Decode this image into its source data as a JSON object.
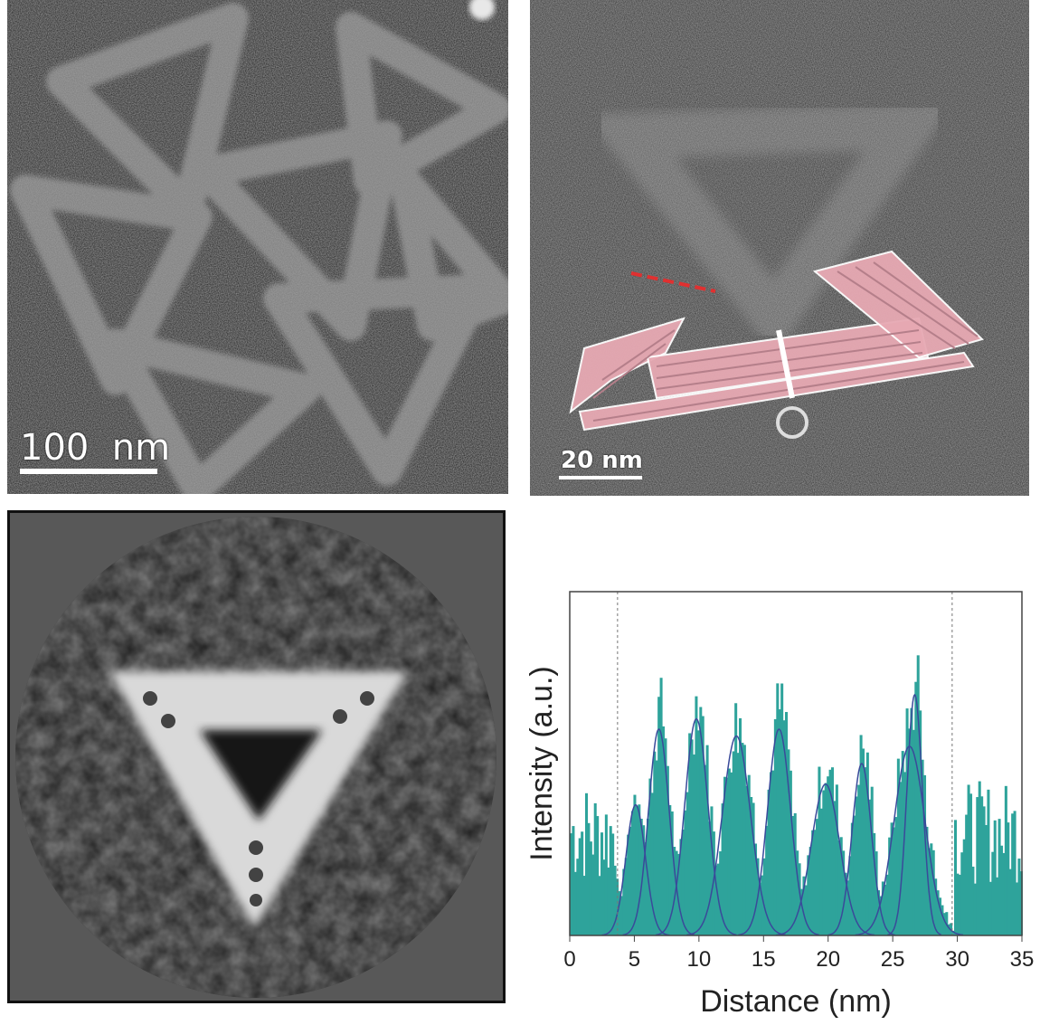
{
  "figure": {
    "panel_a": {
      "scale_label": "100  nm",
      "description_icon": "tem-micrograph-triangles"
    },
    "panel_b": {
      "scale_label": "20 nm",
      "overlay_color": "#e7a9b3",
      "line_color": "#e03030"
    },
    "panel_c": {
      "description_icon": "class-average-triangle"
    },
    "panel_d": {
      "chart_data": {
        "type": "bar",
        "title": "",
        "xlabel": "Distance (nm)",
        "ylabel": "Intensity (a.u.)",
        "xlim": [
          0,
          35
        ],
        "xticks": [
          "0",
          "5",
          "10",
          "15",
          "20",
          "25",
          "30",
          "35"
        ],
        "bar_color": "#2ea39b",
        "fit_color": "#3a4a9a",
        "markers": [
          3.7,
          29.6
        ],
        "peaks": [
          {
            "center": 5.1,
            "height": 0.38,
            "width": 0.75
          },
          {
            "center": 6.9,
            "height": 0.6,
            "width": 0.8
          },
          {
            "center": 9.8,
            "height": 0.63,
            "width": 0.9
          },
          {
            "center": 12.9,
            "height": 0.58,
            "width": 1.1
          },
          {
            "center": 16.2,
            "height": 0.6,
            "width": 0.9
          },
          {
            "center": 19.8,
            "height": 0.44,
            "width": 1.1
          },
          {
            "center": 22.6,
            "height": 0.5,
            "width": 0.75
          },
          {
            "center": 26.3,
            "height": 0.55,
            "width": 1.2
          },
          {
            "center": 26.7,
            "height": 0.7,
            "width": 0.6
          }
        ]
      }
    }
  }
}
